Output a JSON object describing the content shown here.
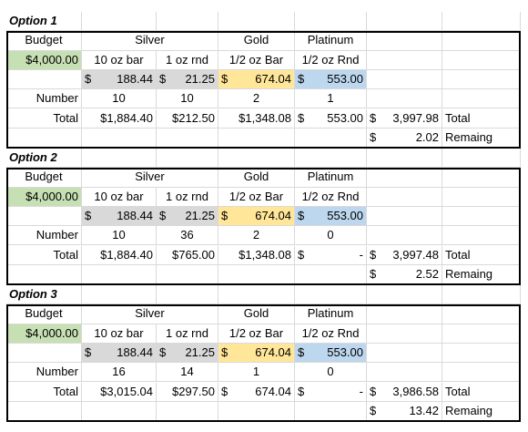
{
  "colors": {
    "budget_fill": "#c6e0b4",
    "silver_fill": "#d9d9d9",
    "gold_fill": "#ffe699",
    "platinum_fill": "#bdd7ee",
    "gridline": "#d9d9d9"
  },
  "options": [
    {
      "title": "Option 1",
      "headers": [
        "Budget",
        "Silver",
        "Gold",
        "Platinum"
      ],
      "budget": "$4,000.00",
      "items": [
        "10 oz bar",
        "1 oz rnd",
        "1/2 oz Bar",
        "1/2 oz Rnd"
      ],
      "prices": [
        {
          "sym": "$",
          "num": "188.44"
        },
        {
          "sym": "$",
          "num": "21.25"
        },
        {
          "sym": "$",
          "num": "674.04"
        },
        {
          "sym": "$",
          "num": "553.00"
        }
      ],
      "number_label": "Number",
      "numbers": [
        "10",
        "10",
        "2",
        "1"
      ],
      "total_label": "Total",
      "totals": [
        {
          "sym": "",
          "num": "$1,884.40"
        },
        {
          "sym": "",
          "num": "$212.50"
        },
        {
          "sym": "",
          "num": "$1,348.08"
        },
        {
          "sym": "$",
          "num": "553.00"
        }
      ],
      "grand_total": {
        "sym": "$",
        "num": "3,997.98"
      },
      "grand_total_label": "Total",
      "remaining": {
        "sym": "$",
        "num": "2.02"
      },
      "remaining_label": "Remaing"
    },
    {
      "title": "Option 2",
      "headers": [
        "Budget",
        "Silver",
        "Gold",
        "Platinum"
      ],
      "budget": "$4,000.00",
      "items": [
        "10 oz bar",
        "1 oz rnd",
        "1/2 oz Bar",
        "1/2 oz Rnd"
      ],
      "prices": [
        {
          "sym": "$",
          "num": "188.44"
        },
        {
          "sym": "$",
          "num": "21.25"
        },
        {
          "sym": "$",
          "num": "674.04"
        },
        {
          "sym": "$",
          "num": "553.00"
        }
      ],
      "number_label": "Number",
      "numbers": [
        "10",
        "36",
        "2",
        "0"
      ],
      "total_label": "Total",
      "totals": [
        {
          "sym": "",
          "num": "$1,884.40"
        },
        {
          "sym": "",
          "num": "$765.00"
        },
        {
          "sym": "",
          "num": "$1,348.08"
        },
        {
          "sym": "$",
          "num": "-"
        }
      ],
      "grand_total": {
        "sym": "$",
        "num": "3,997.48"
      },
      "grand_total_label": "Total",
      "remaining": {
        "sym": "$",
        "num": "2.52"
      },
      "remaining_label": "Remaing"
    },
    {
      "title": "Option 3",
      "headers": [
        "Budget",
        "Silver",
        "Gold",
        "Platinum"
      ],
      "budget": "$4,000.00",
      "items": [
        "10 oz bar",
        "1 oz rnd",
        "1/2 oz Bar",
        "1/2 oz Rnd"
      ],
      "prices": [
        {
          "sym": "$",
          "num": "188.44"
        },
        {
          "sym": "$",
          "num": "21.25"
        },
        {
          "sym": "$",
          "num": "674.04"
        },
        {
          "sym": "$",
          "num": "553.00"
        }
      ],
      "number_label": "Number",
      "numbers": [
        "16",
        "14",
        "1",
        "0"
      ],
      "total_label": "Total",
      "totals": [
        {
          "sym": "",
          "num": "$3,015.04"
        },
        {
          "sym": "",
          "num": "$297.50"
        },
        {
          "sym": "$",
          "num": "674.04"
        },
        {
          "sym": "$",
          "num": "-"
        }
      ],
      "grand_total": {
        "sym": "$",
        "num": "3,986.58"
      },
      "grand_total_label": "Total",
      "remaining": {
        "sym": "$",
        "num": "13.42"
      },
      "remaining_label": "Remaing"
    }
  ]
}
